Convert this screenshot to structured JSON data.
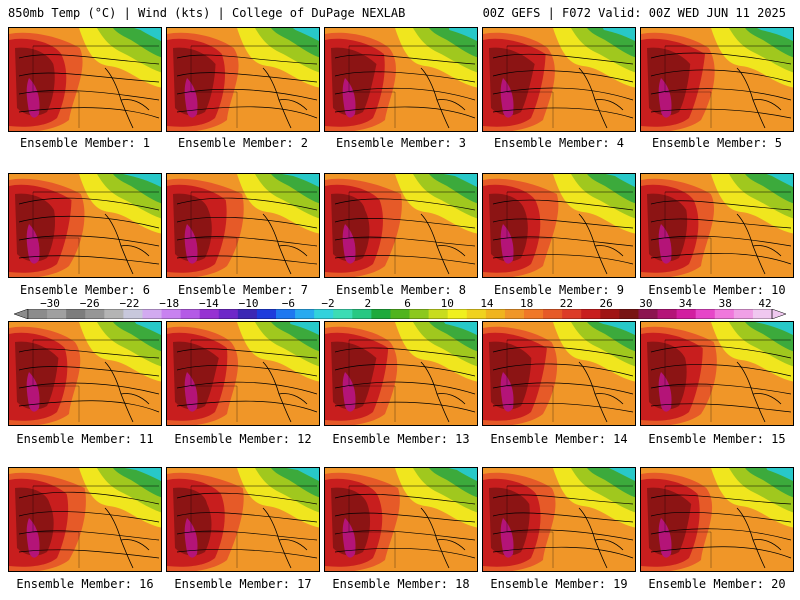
{
  "header": {
    "left": "850mb Temp (°C) | Wind (kts) | College of DuPage NEXLAB",
    "right": "00Z GEFS | F072 Valid: 00Z WED JUN 11 2025"
  },
  "members": [
    "Ensemble Member: 1",
    "Ensemble Member: 2",
    "Ensemble Member: 3",
    "Ensemble Member: 4",
    "Ensemble Member: 5",
    "Ensemble Member: 6",
    "Ensemble Member: 7",
    "Ensemble Member: 8",
    "Ensemble Member: 9",
    "Ensemble Member: 10",
    "Ensemble Member: 11",
    "Ensemble Member: 12",
    "Ensemble Member: 13",
    "Ensemble Member: 14",
    "Ensemble Member: 15",
    "Ensemble Member: 16",
    "Ensemble Member: 17",
    "Ensemble Member: 18",
    "Ensemble Member: 19",
    "Ensemble Member: 20"
  ],
  "colorbar": {
    "ticks": [
      "−30",
      "−26",
      "−22",
      "−18",
      "−14",
      "−10",
      "−6",
      "−2",
      "2",
      "6",
      "10",
      "14",
      "18",
      "22",
      "26",
      "30",
      "34",
      "38",
      "42"
    ],
    "colors": [
      "#8c8c8c",
      "#a0a0a0",
      "#7d7d7d",
      "#969696",
      "#b4b4b4",
      "#c8c8dc",
      "#d2aaf0",
      "#c882f0",
      "#b45ae6",
      "#9632d2",
      "#6e28c8",
      "#3c28b4",
      "#1e3cdc",
      "#1e78f0",
      "#28aaf0",
      "#32d2dc",
      "#3cdcb4",
      "#28c882",
      "#1eaa3c",
      "#50b41e",
      "#8cc81e",
      "#c8dc1e",
      "#f0f01e",
      "#f0d21e",
      "#f0b41e",
      "#f09628",
      "#f07828",
      "#e65a28",
      "#dc3c28",
      "#c81e1e",
      "#a01414",
      "#781414",
      "#8c1450",
      "#b41478",
      "#d21ea0",
      "#e646c8",
      "#f078dc",
      "#f0a0e6",
      "#f0c8f0"
    ]
  },
  "map_colors": {
    "hot_core": "#8c1414",
    "hot": "#c81e1e",
    "warm": "#e65a28",
    "orange": "#f09628",
    "yellow": "#f0e61e",
    "lime": "#a0c81e",
    "green": "#3caa3c",
    "teal": "#28c8c8",
    "magenta": "#b41478"
  }
}
